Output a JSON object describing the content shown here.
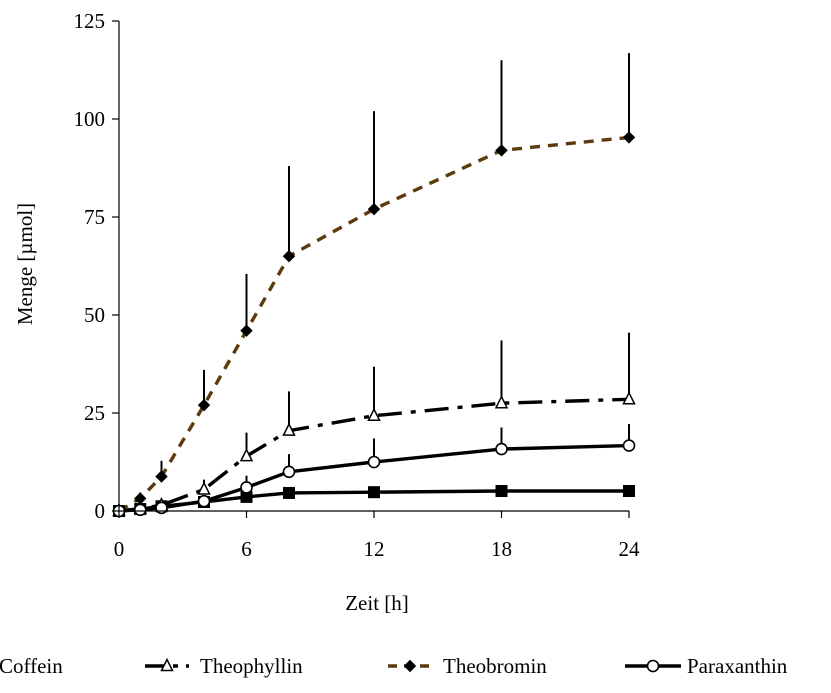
{
  "chart_data": {
    "type": "line",
    "title": "",
    "xlabel": "Zeit [h]",
    "ylabel": "Menge [µmol]",
    "xlim": [
      0,
      24
    ],
    "ylim": [
      0,
      125
    ],
    "xticks": [
      0,
      6,
      12,
      18,
      24
    ],
    "yticks": [
      0,
      25,
      50,
      75,
      100,
      125
    ],
    "x_tick_labels": [
      "0",
      "6",
      "12",
      "18",
      "24"
    ],
    "y_tick_labels": [
      "0",
      "25",
      "50",
      "75",
      "100",
      "125"
    ],
    "grid": false,
    "legend_position": "bottom",
    "series": [
      {
        "name": "Coffein",
        "color": "#000000",
        "line_style": "solid",
        "marker": "filled-square",
        "x": [
          0,
          1,
          2,
          4,
          6,
          8,
          12,
          18,
          24
        ],
        "values": [
          0,
          0.5,
          1.2,
          2.3,
          3.6,
          4.6,
          4.8,
          5.1,
          5.1
        ],
        "error_upper": [
          0,
          0.3,
          0.5,
          0.6,
          0.8,
          0.6,
          0.4,
          0.3,
          0.3
        ]
      },
      {
        "name": "Theophyllin",
        "color": "#000000",
        "line_style": "dash-dot",
        "marker": "open-triangle",
        "x": [
          0,
          1,
          2,
          4,
          6,
          8,
          12,
          18,
          24
        ],
        "values": [
          0,
          0.6,
          1.5,
          5.5,
          14,
          20.5,
          24.3,
          27.5,
          28.5
        ],
        "error_upper": [
          0,
          0.5,
          1.2,
          2.5,
          6,
          10,
          12.5,
          16,
          17
        ]
      },
      {
        "name": "Theobromin",
        "color": "#5c3a0b",
        "line_style": "dashed",
        "marker": "filled-diamond",
        "x": [
          0,
          1,
          2,
          4,
          6,
          8,
          12,
          18,
          24
        ],
        "values": [
          0,
          3.2,
          8.8,
          27,
          46,
          65,
          77,
          92,
          95.3
        ],
        "error_upper": [
          0,
          1.5,
          4,
          9,
          14.5,
          23,
          25,
          23,
          21.5
        ]
      },
      {
        "name": "Paraxanthin",
        "color": "#000000",
        "line_style": "solid",
        "marker": "open-circle",
        "x": [
          0,
          1,
          2,
          4,
          6,
          8,
          12,
          18,
          24
        ],
        "values": [
          0,
          0.3,
          0.8,
          2.5,
          6,
          10,
          12.5,
          15.8,
          16.7
        ],
        "error_upper": [
          0,
          0.3,
          0.7,
          1.5,
          3,
          4.5,
          6,
          5.5,
          5.5
        ]
      }
    ]
  }
}
